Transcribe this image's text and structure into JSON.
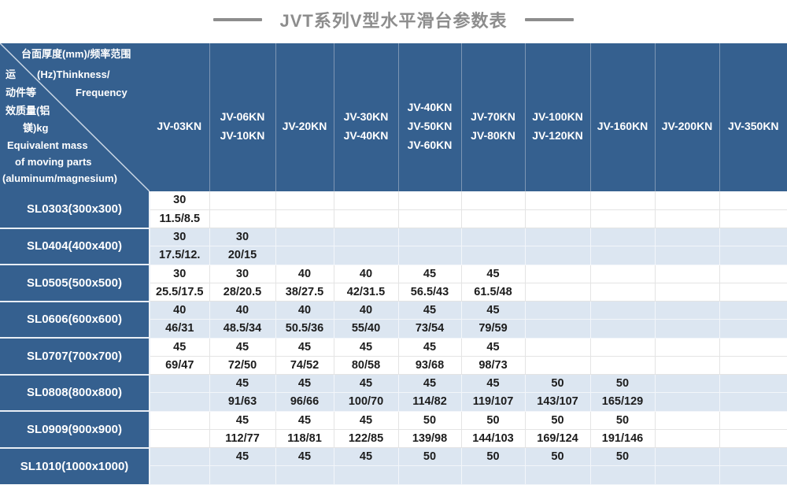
{
  "title": "JVT系列V型水平滑台参数表",
  "corner": {
    "l1": "台面厚度(mm)/频率范围",
    "l2a": "运",
    "l2b": "(Hz)Thinkness/",
    "l3a": "动件等",
    "l3b": "Frequency",
    "l4": "效质量(铝",
    "l5": "镁)kg",
    "l6": "Equivalent mass",
    "l7": "of moving parts",
    "l8": "(aluminum/magnesium)"
  },
  "colors": {
    "header_blue": "#35608F",
    "band_light_blue": "#DCE6F1",
    "band_white": "#FFFFFF",
    "title_gray": "#8D8D8D"
  },
  "table": {
    "columns": [
      [
        "JV-03KN"
      ],
      [
        "JV-06KN",
        "JV-10KN"
      ],
      [
        "JV-20KN"
      ],
      [
        "JV-30KN",
        "JV-40KN"
      ],
      [
        "JV-40KN",
        "JV-50KN",
        "JV-60KN"
      ],
      [
        "JV-70KN",
        "JV-80KN"
      ],
      [
        "JV-100KN",
        "JV-120KN"
      ],
      [
        "JV-160KN"
      ],
      [
        "JV-200KN"
      ],
      [
        "JV-350KN"
      ]
    ],
    "rows": [
      {
        "label": "SL0303(300x300)",
        "thickness": [
          "30",
          "",
          "",
          "",
          "",
          "",
          "",
          "",
          "",
          ""
        ],
        "frequency": [
          "11.5/8.5",
          "",
          "",
          "",
          "",
          "",
          "",
          "",
          "",
          ""
        ]
      },
      {
        "label": "SL0404(400x400)",
        "thickness": [
          "30",
          "30",
          "",
          "",
          "",
          "",
          "",
          "",
          "",
          ""
        ],
        "frequency": [
          "17.5/12.",
          "20/15",
          "",
          "",
          "",
          "",
          "",
          "",
          "",
          ""
        ]
      },
      {
        "label": "SL0505(500x500)",
        "thickness": [
          "30",
          "30",
          "40",
          "40",
          "45",
          "45",
          "",
          "",
          "",
          ""
        ],
        "frequency": [
          "25.5/17.5",
          "28/20.5",
          "38/27.5",
          "42/31.5",
          "56.5/43",
          "61.5/48",
          "",
          "",
          "",
          ""
        ]
      },
      {
        "label": "SL0606(600x600)",
        "thickness": [
          "40",
          "40",
          "40",
          "40",
          "45",
          "45",
          "",
          "",
          "",
          ""
        ],
        "frequency": [
          "46/31",
          "48.5/34",
          "50.5/36",
          "55/40",
          "73/54",
          "79/59",
          "",
          "",
          "",
          ""
        ]
      },
      {
        "label": "SL0707(700x700)",
        "thickness": [
          "45",
          "45",
          "45",
          "45",
          "45",
          "45",
          "",
          "",
          "",
          ""
        ],
        "frequency": [
          "69/47",
          "72/50",
          "74/52",
          "80/58",
          "93/68",
          "98/73",
          "",
          "",
          "",
          ""
        ]
      },
      {
        "label": "SL0808(800x800)",
        "thickness": [
          "",
          "45",
          "45",
          "45",
          "45",
          "45",
          "50",
          "50",
          "",
          ""
        ],
        "frequency": [
          "",
          "91/63",
          "96/66",
          "100/70",
          "114/82",
          "119/107",
          "143/107",
          "165/129",
          "",
          ""
        ]
      },
      {
        "label": "SL0909(900x900)",
        "thickness": [
          "",
          "45",
          "45",
          "45",
          "50",
          "50",
          "50",
          "50",
          "",
          ""
        ],
        "frequency": [
          "",
          "112/77",
          "118/81",
          "122/85",
          "139/98",
          "144/103",
          "169/124",
          "191/146",
          "",
          ""
        ]
      },
      {
        "label": "SL1010(1000x1000)",
        "thickness": [
          "",
          "45",
          "45",
          "45",
          "50",
          "50",
          "50",
          "50",
          "",
          ""
        ],
        "frequency": [
          "",
          "",
          "",
          "",
          "",
          "",
          "",
          "",
          "",
          ""
        ]
      }
    ]
  }
}
